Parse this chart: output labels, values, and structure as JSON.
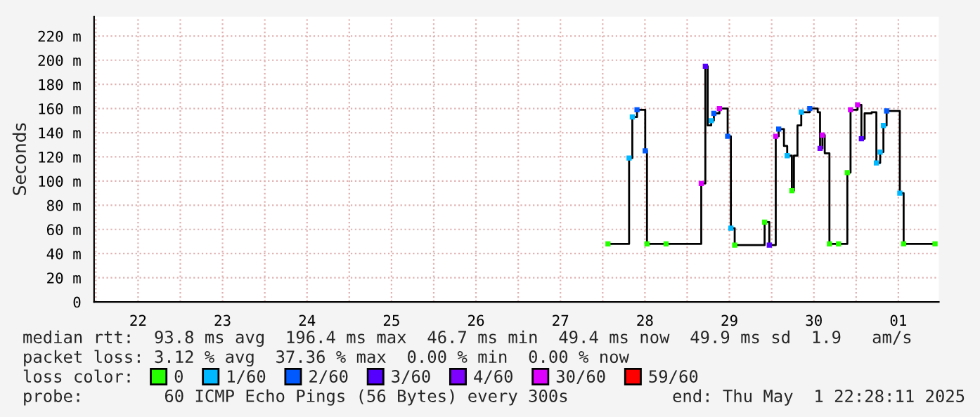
{
  "chart_data": {
    "type": "step",
    "ylabel": "Seconds",
    "xlim": [
      "2025-04-21T23:30",
      "2025-05-01T23:30"
    ],
    "ylim": [
      0,
      236
    ],
    "yticks": [
      0,
      {
        "value": 20,
        "label": "20 m"
      },
      {
        "value": 40,
        "label": "40 m"
      },
      {
        "value": 60,
        "label": "60 m"
      },
      {
        "value": 80,
        "label": "80 m"
      },
      {
        "value": 100,
        "label": "100 m"
      },
      {
        "value": 120,
        "label": "120 m"
      },
      {
        "value": 140,
        "label": "140 m"
      },
      {
        "value": 160,
        "label": "160 m"
      },
      {
        "value": 180,
        "label": "180 m"
      },
      {
        "value": 200,
        "label": "200 m"
      },
      {
        "value": 220,
        "label": "220 m"
      }
    ],
    "xticks": [
      {
        "value": "2025-04-22T00:00",
        "label": null
      },
      {
        "value": "2025-04-22T12:00",
        "label": "22"
      },
      {
        "value": "2025-04-23T00:00",
        "label": null
      },
      {
        "value": "2025-04-23T12:00",
        "label": "23"
      },
      {
        "value": "2025-04-24T00:00",
        "label": null
      },
      {
        "value": "2025-04-24T12:00",
        "label": "24"
      },
      {
        "value": "2025-04-25T00:00",
        "label": null
      },
      {
        "value": "2025-04-25T12:00",
        "label": "25"
      },
      {
        "value": "2025-04-26T00:00",
        "label": null
      },
      {
        "value": "2025-04-26T12:00",
        "label": "26"
      },
      {
        "value": "2025-04-27T00:00",
        "label": null
      },
      {
        "value": "2025-04-27T12:00",
        "label": "27"
      },
      {
        "value": "2025-04-28T00:00",
        "label": null
      },
      {
        "value": "2025-04-28T12:00",
        "label": "28"
      },
      {
        "value": "2025-04-29T00:00",
        "label": null
      },
      {
        "value": "2025-04-29T12:00",
        "label": "29"
      },
      {
        "value": "2025-04-30T00:00",
        "label": null
      },
      {
        "value": "2025-04-30T12:00",
        "label": "30"
      },
      {
        "value": "2025-05-01T00:00",
        "label": null
      },
      {
        "value": "2025-05-01T12:00",
        "label": "01"
      }
    ],
    "grid": true,
    "legend": "bottom",
    "legend_title": "loss color:",
    "series": [
      {
        "color": "#000000",
        "x": [
          "2025-04-28T01:30",
          "2025-04-28T07:30",
          "2025-04-28T08:25",
          "2025-04-28T09:45",
          "2025-04-28T12:05",
          "2025-04-28T12:35",
          "2025-04-29T04:00",
          "2025-04-29T05:10",
          "2025-04-29T05:50",
          "2025-04-29T06:50",
          "2025-04-29T07:35",
          "2025-04-29T09:10",
          "2025-04-29T11:30",
          "2025-04-29T12:25",
          "2025-04-29T13:30",
          "2025-04-29T22:00",
          "2025-04-29T23:20",
          "2025-04-30T01:10",
          "2025-04-30T02:00",
          "2025-04-30T03:30",
          "2025-04-30T04:25",
          "2025-04-30T05:45",
          "2025-04-30T06:20",
          "2025-04-30T07:20",
          "2025-04-30T08:25",
          "2025-04-30T10:50",
          "2025-04-30T13:05",
          "2025-04-30T13:45",
          "2025-04-30T14:25",
          "2025-04-30T15:05",
          "2025-04-30T16:25",
          "2025-04-30T21:30",
          "2025-04-30T22:25",
          "2025-05-01T00:25",
          "2025-05-01T01:30",
          "2025-05-01T02:25",
          "2025-05-01T04:25",
          "2025-05-01T05:45",
          "2025-05-01T06:50",
          "2025-05-01T07:45",
          "2025-05-01T08:40",
          "2025-05-01T12:25",
          "2025-05-01T13:30",
          "2025-05-01T22:25"
        ],
        "values": [
          48,
          119,
          153,
          159,
          125,
          48,
          98,
          195,
          146,
          150,
          156,
          160,
          137,
          61,
          47,
          66,
          47,
          137,
          143,
          129,
          121,
          92,
          121,
          146,
          157,
          160,
          157,
          127,
          138,
          123,
          48,
          107,
          159,
          163,
          135,
          156,
          157,
          115,
          124,
          146,
          158,
          90,
          48,
          48
        ]
      },
      {
        "type": "scatter",
        "marker": "square",
        "name": "0",
        "color": "#26ff00",
        "x": [
          "2025-04-28T01:30",
          "2025-04-28T12:35",
          "2025-04-28T18:00",
          "2025-04-29T13:30",
          "2025-04-29T22:00",
          "2025-04-30T05:45",
          "2025-04-30T16:25",
          "2025-04-30T19:00",
          "2025-04-30T21:30",
          "2025-05-01T13:30",
          "2025-05-01T22:25"
        ],
        "values": [
          48,
          48,
          48,
          47,
          66,
          92,
          48,
          48,
          107,
          48,
          48
        ]
      },
      {
        "type": "scatter",
        "marker": "square",
        "name": "1/60",
        "color": "#00b8ff",
        "x": [
          "2025-04-28T07:30",
          "2025-04-28T08:25",
          "2025-04-29T06:50",
          "2025-04-29T12:25",
          "2025-04-30T04:25",
          "2025-04-30T08:25",
          "2025-05-01T05:45",
          "2025-05-01T06:50",
          "2025-05-01T07:45",
          "2025-05-01T12:25"
        ],
        "values": [
          119,
          153,
          150,
          61,
          121,
          157,
          115,
          124,
          146,
          90
        ]
      },
      {
        "type": "scatter",
        "marker": "square",
        "name": "2/60",
        "color": "#0059ff",
        "x": [
          "2025-04-28T09:45",
          "2025-04-28T12:05",
          "2025-04-29T07:35",
          "2025-04-29T11:30",
          "2025-04-30T02:00",
          "2025-04-30T10:50",
          "2025-05-01T08:40"
        ],
        "values": [
          159,
          125,
          156,
          137,
          143,
          160,
          158
        ]
      },
      {
        "type": "scatter",
        "marker": "square",
        "name": "3/60",
        "color": "#5500ff",
        "x": [
          "2025-04-29T05:10",
          "2025-04-29T23:20",
          "2025-05-01T01:30"
        ],
        "values": [
          195,
          47,
          135
        ]
      },
      {
        "type": "scatter",
        "marker": "square",
        "name": "4/60",
        "color": "#7e00ff",
        "x": [
          "2025-04-30T13:45"
        ],
        "values": [
          127
        ]
      },
      {
        "type": "scatter",
        "marker": "square",
        "name": "30/60",
        "color": "#dd00ff",
        "x": [
          "2025-04-29T04:00",
          "2025-04-29T09:10",
          "2025-04-30T01:10",
          "2025-04-30T14:25",
          "2025-04-30T22:25",
          "2025-05-01T00:25"
        ],
        "values": [
          98,
          160,
          137,
          138,
          159,
          163
        ]
      },
      {
        "type": "scatter",
        "marker": "square",
        "name": "59/60",
        "color": "#ff0000"
      }
    ],
    "annotations": [
      "median rtt:  93.8 ms avg  196.4 ms max  46.7 ms min  49.4 ms now  49.9 ms sd  1.9   am/s",
      "packet loss: 3.12 % avg  37.36 % max  0.00 % min  0.00 % now",
      "probe:        60 ICMP Echo Pings (56 Bytes) every 300s",
      "end: Thu May  1 22:28:11 2025"
    ]
  }
}
